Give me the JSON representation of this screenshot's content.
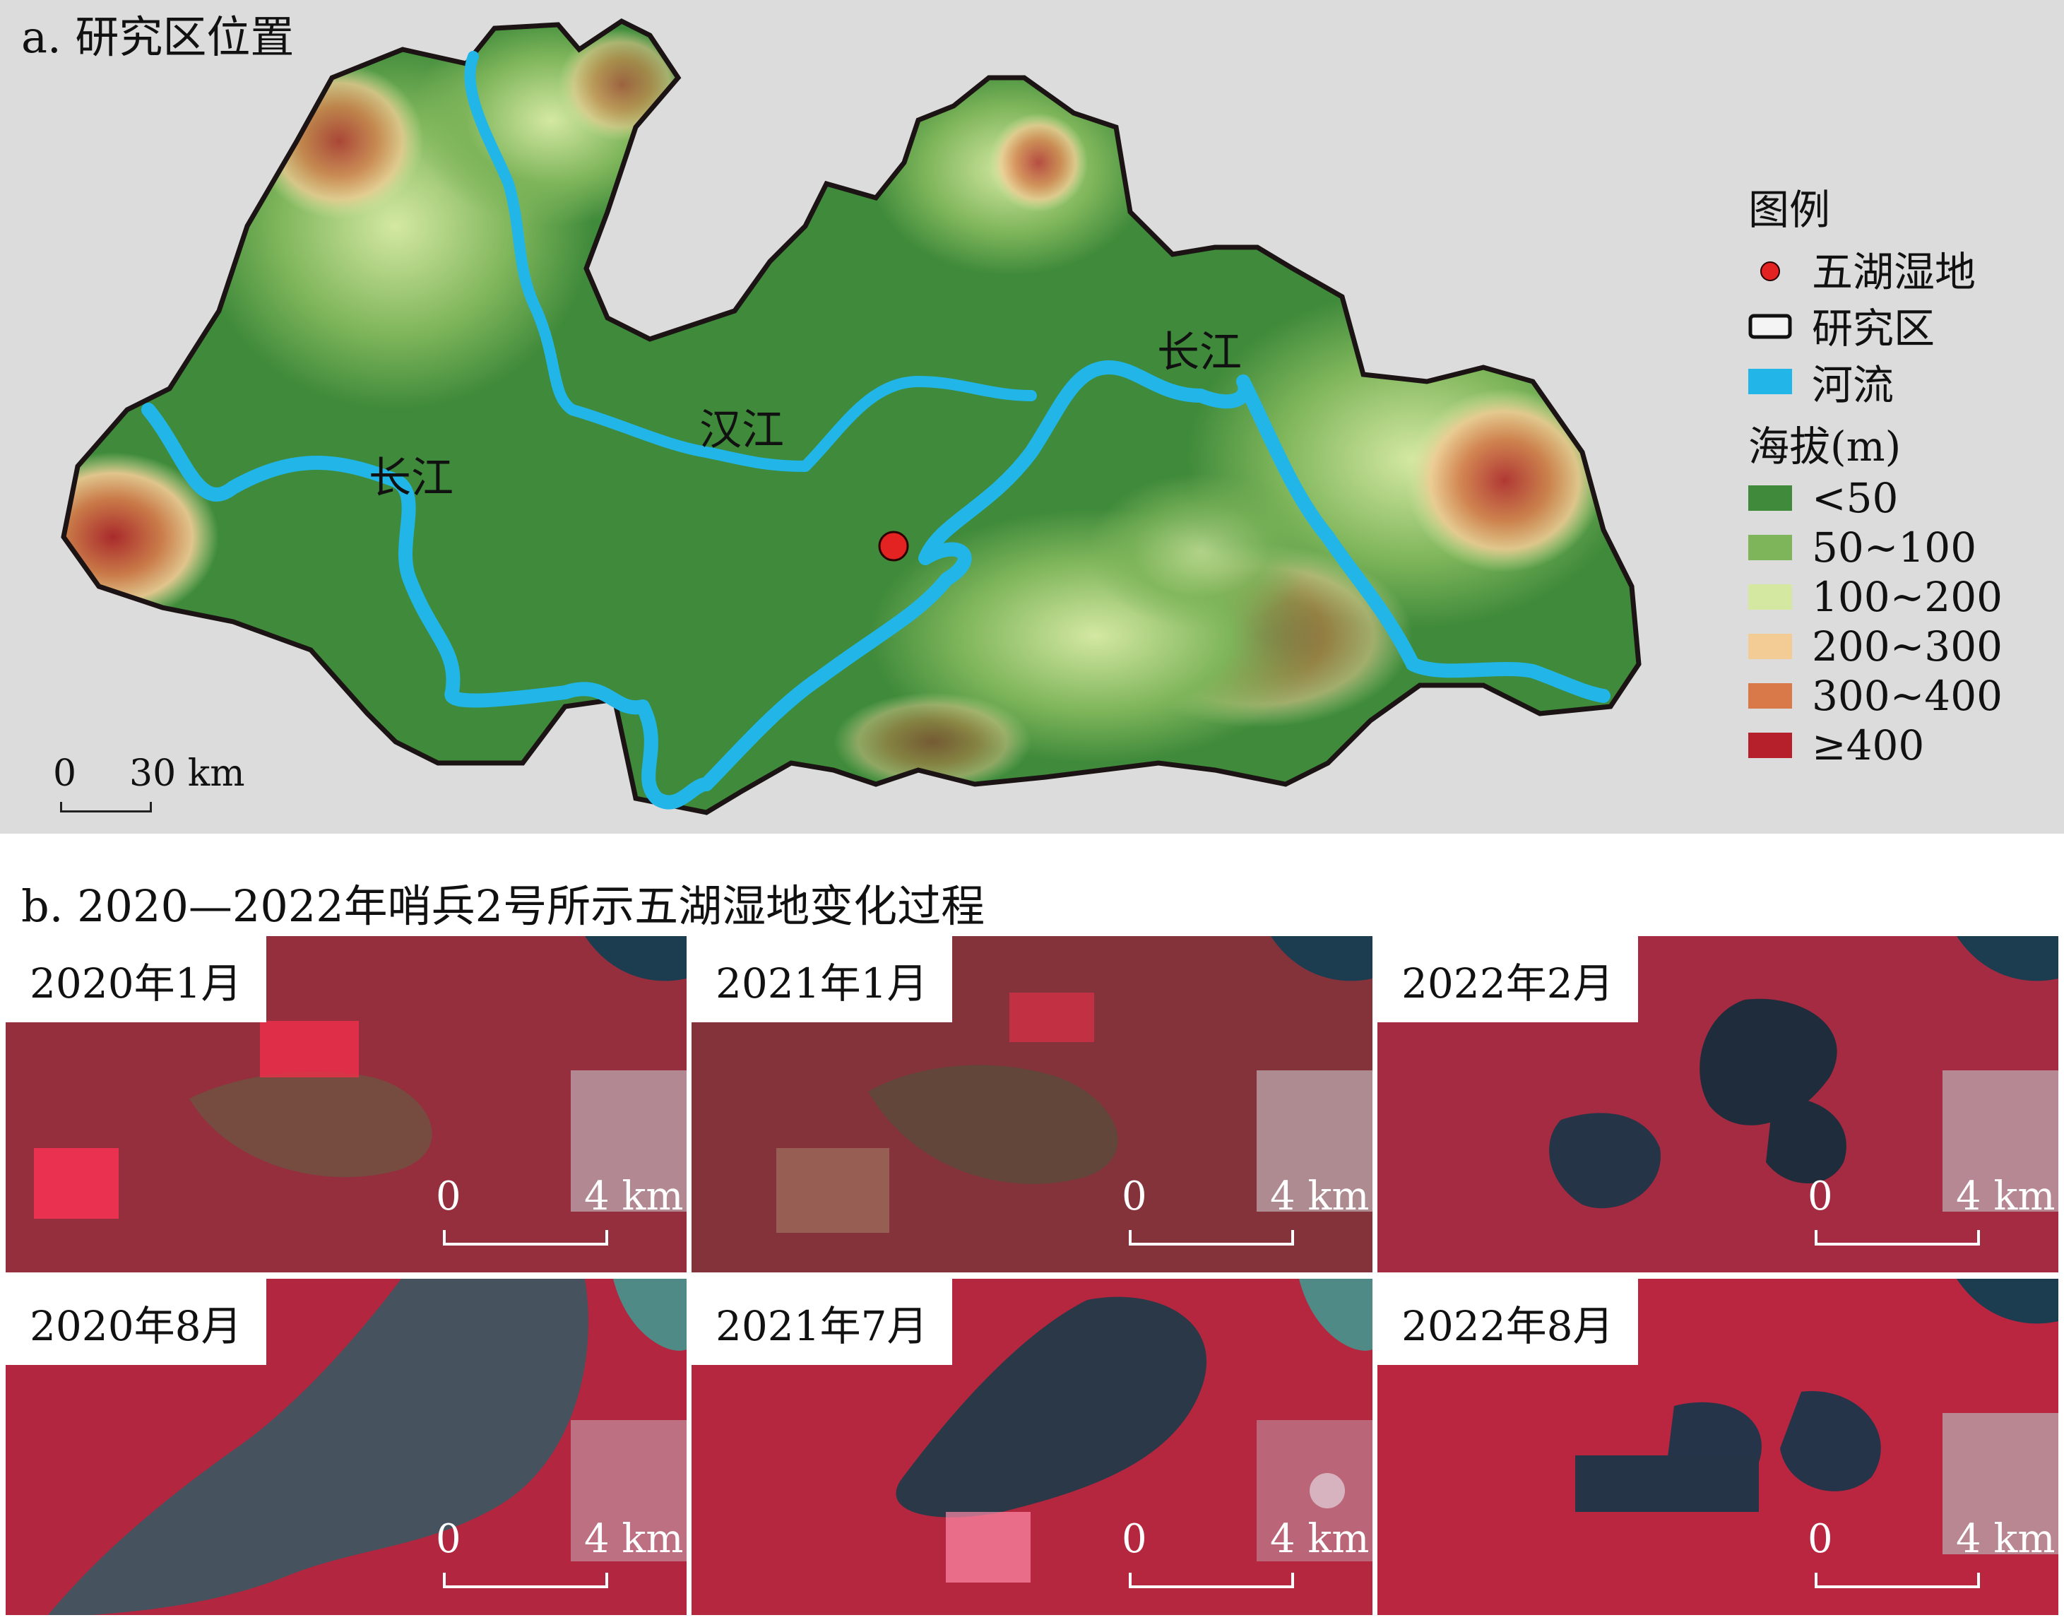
{
  "panel_a": {
    "title": "a. 研究区位置",
    "river_labels": {
      "changjiang_left": "长江",
      "hanjiang": "汉江",
      "changjiang_right": "长江"
    },
    "scale_bar": {
      "zero": "0",
      "distance": "30 km"
    },
    "legend": {
      "title": "图例",
      "items": [
        {
          "label": "五湖湿地",
          "symbol": "red-dot",
          "color": "#e32222"
        },
        {
          "label": "研究区",
          "symbol": "outline-rect"
        },
        {
          "label": "河流",
          "symbol": "blue-rect",
          "color": "#22b5e8"
        }
      ],
      "elevation_title": "海拔(m)",
      "elevation_classes": [
        {
          "label": "<50",
          "color": "#3f8a3b"
        },
        {
          "label": "50~100",
          "color": "#7eb55a"
        },
        {
          "label": "100~200",
          "color": "#d4e8a2"
        },
        {
          "label": "200~300",
          "color": "#f2cb95"
        },
        {
          "label": "300~400",
          "color": "#d9794a"
        },
        {
          "label": "≥400",
          "color": "#b5202a"
        }
      ]
    }
  },
  "panel_b": {
    "title": "b. 2020—2022年哨兵2号所示五湖湿地变化过程",
    "tiles": [
      {
        "label": "2020年1月",
        "water_level": "low"
      },
      {
        "label": "2021年1月",
        "water_level": "low"
      },
      {
        "label": "2022年2月",
        "water_level": "medium"
      },
      {
        "label": "2020年8月",
        "water_level": "flood"
      },
      {
        "label": "2021年7月",
        "water_level": "high"
      },
      {
        "label": "2022年8月",
        "water_level": "medium"
      }
    ],
    "scale_bar": {
      "zero": "0",
      "distance": "4 km"
    }
  }
}
